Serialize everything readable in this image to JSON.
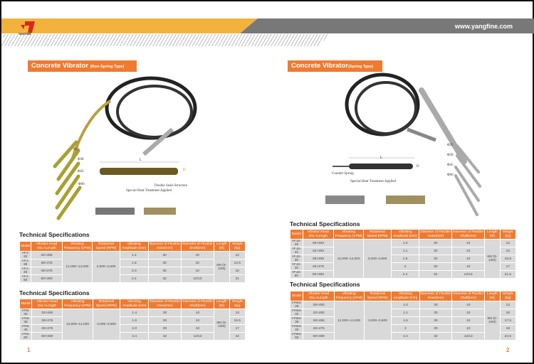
{
  "header": {
    "url": "www.yangfine.com",
    "logo_text": "YANGFINE",
    "colors": {
      "orange": "#f2b33d",
      "gray": "#787878",
      "accent": "#f07a30"
    }
  },
  "columns": [
    "Model",
    "Vibrator Head Dia.×Length",
    "Vibrating Frequency (VPM)",
    "Rotational Speed (RPM)",
    "Vibrating Amplitude (mm)",
    "Diameter of Flexible Hose(mm)",
    "Diameter of Flexible Shaft(mm)",
    "Length (M)",
    "Weight (kg)"
  ],
  "shared": {
    "frequency": "12,000–14,000",
    "speed": "3,000–3,600",
    "length": "6M (5-12M)"
  },
  "page1": {
    "title": "Concrete Vibrator",
    "subtitle": "(Non-Spring Type)",
    "diameters": [
      "Φ32",
      "Φ38",
      "Φ45",
      "Φ60"
    ],
    "labels": {
      "length": "L",
      "diameter": "D",
      "double_seals": "Double Seals Structure",
      "heat": "Special Heat Treatment Applied"
    },
    "spec_title": "Technical Specifications",
    "table1": [
      [
        "YFJ-32",
        "32×450",
        "1.4",
        "30",
        "10",
        "12"
      ],
      [
        "YFJ-38",
        "38×475",
        "1.6",
        "30",
        "10",
        "14.5"
      ],
      [
        "YFJ-45",
        "45×475",
        "2.0",
        "30",
        "10",
        "16"
      ],
      [
        "YFJ-60",
        "60×480",
        "2.4",
        "32",
        "12/13",
        "21"
      ]
    ],
    "table2": [
      [
        "YFM-32",
        "32×450",
        "1.4",
        "30",
        "10",
        "13"
      ],
      [
        "YFM-38",
        "38×475",
        "1.6",
        "30",
        "10",
        "15.5"
      ],
      [
        "YFM-45",
        "45×475",
        "2.0",
        "30",
        "10",
        "17"
      ],
      [
        "YFM-60",
        "60×480",
        "2.4",
        "32",
        "12/13",
        "22"
      ]
    ],
    "page_number": "1"
  },
  "page2": {
    "title": "Concrete Vibrator",
    "subtitle": "(Spring Type)",
    "diameters": [
      "Φ32",
      "Φ38",
      "Φ45",
      "Φ60"
    ],
    "labels": {
      "length": "L",
      "diameter": "D",
      "spring": "Counter Spring",
      "heat": "Special Heat Treatment Applied"
    },
    "spec_title": "Technical Specifications",
    "table1": [
      [
        "YFJS-28",
        "28×450",
        "1.0",
        "30",
        "10",
        "12"
      ],
      [
        "YFJS-32",
        "32×450",
        "1.1",
        "30",
        "10",
        "15"
      ],
      [
        "YFJS-38",
        "38×465",
        "1.6",
        "30",
        "10",
        "16.5"
      ],
      [
        "YFJS-45",
        "45×475",
        "2",
        "30",
        "10",
        "17"
      ],
      [
        "YFJS-60",
        "60×480",
        "2.4",
        "32",
        "12/13",
        "21.5"
      ]
    ],
    "table2": [
      [
        "YFMS-28",
        "28×450",
        "1.0",
        "30",
        "10",
        "13"
      ],
      [
        "YFMS-32",
        "32×450",
        "1.1",
        "30",
        "10",
        "16"
      ],
      [
        "YFMS-38",
        "38×465",
        "1.6",
        "30",
        "10",
        "17.5"
      ],
      [
        "YFMS-45",
        "45×475",
        "2",
        "30",
        "10",
        "18"
      ],
      [
        "YFMS-60",
        "60×480",
        "2.4",
        "32",
        "12/13",
        "22.5"
      ]
    ],
    "page_number": "2"
  }
}
